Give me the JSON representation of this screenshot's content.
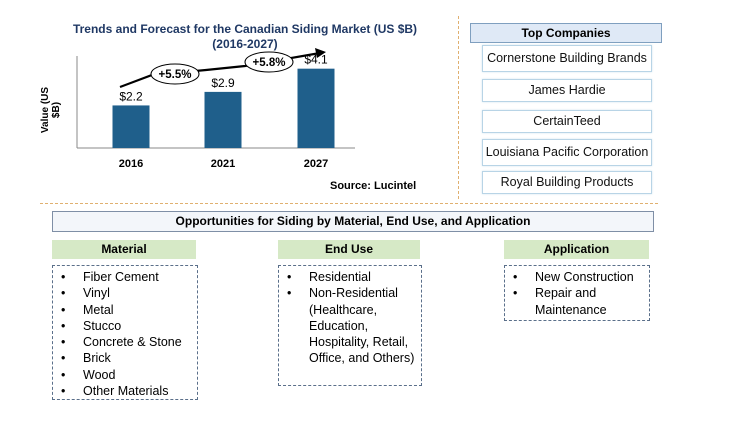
{
  "chart_data": {
    "type": "bar",
    "title": "Trends and Forecast for the Canadian  Siding Market (US $B)",
    "subtitle": "(2016-2027)",
    "ylabel": "Value (US $B)",
    "xlabel": "",
    "categories": [
      "2016",
      "2021",
      "2027"
    ],
    "values": [
      2.2,
      2.9,
      4.1
    ],
    "value_labels": [
      "$2.2",
      "$2.9",
      "$4.1"
    ],
    "ylim": [
      0,
      4.6
    ],
    "bar_color": "#1f5f8b",
    "growth_annotations": [
      "+5.5%",
      "+5.8%"
    ],
    "source": "Source: Lucintel",
    "grid": false,
    "legend": "none"
  },
  "top_companies": {
    "title": "Top Companies",
    "items": [
      "Cornerstone Building Brands",
      "James Hardie",
      "CertainTeed",
      "Louisiana Pacific Corporation",
      "Royal Building Products"
    ]
  },
  "opportunities": {
    "title": "Opportunities for Siding by Material, End Use, and Application",
    "material": {
      "title": "Material",
      "items": [
        "Fiber Cement",
        "Vinyl",
        "Metal",
        "Stucco",
        "Concrete & Stone",
        "Brick",
        "Wood",
        "Other Materials"
      ]
    },
    "end_use": {
      "title": "End Use",
      "items": [
        "Residential",
        "Non-Residential (Healthcare, Education, Hospitality, Retail, Office, and Others)"
      ]
    },
    "application": {
      "title": "Application",
      "items": [
        "New Construction",
        "Repair and Maintenance"
      ]
    }
  },
  "colors": {
    "bar": "#1f5f8b",
    "title": "#1f3864",
    "category_header": "#d6e9c6",
    "separator": "#e0b070"
  }
}
